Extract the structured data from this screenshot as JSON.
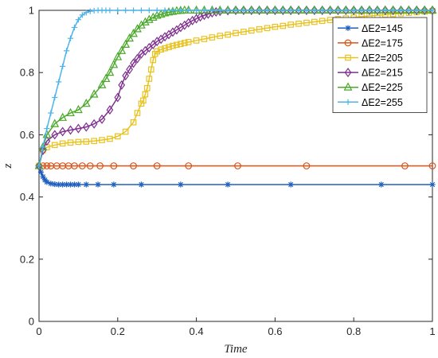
{
  "chart_data": {
    "type": "line",
    "title": "",
    "xlabel": "Time",
    "ylabel": "z",
    "xlim": [
      0,
      1
    ],
    "ylim": [
      0,
      1
    ],
    "xticks": [
      0,
      0.2,
      0.4,
      0.6,
      0.8,
      1
    ],
    "yticks": [
      0,
      0.2,
      0.4,
      0.6,
      0.8,
      1
    ],
    "xtick_labels": [
      "0",
      "0.2",
      "0.4",
      "0.6",
      "0.8",
      "1"
    ],
    "ytick_labels": [
      "0",
      "0.2",
      "0.4",
      "0.6",
      "0.8",
      "1"
    ],
    "grid": false,
    "legend_position": "top-right",
    "series": [
      {
        "name": "ΔE2=145",
        "color": "#1f5fbf",
        "marker": "asterisk",
        "x": [
          0,
          0.005,
          0.01,
          0.015,
          0.02,
          0.03,
          0.04,
          0.05,
          0.06,
          0.07,
          0.08,
          0.09,
          0.1,
          0.12,
          0.15,
          0.19,
          0.26,
          0.36,
          0.48,
          0.64,
          0.87,
          1.0
        ],
        "y": [
          0.5,
          0.48,
          0.465,
          0.455,
          0.448,
          0.443,
          0.441,
          0.44,
          0.44,
          0.44,
          0.44,
          0.44,
          0.44,
          0.44,
          0.44,
          0.44,
          0.44,
          0.44,
          0.44,
          0.44,
          0.44,
          0.44
        ]
      },
      {
        "name": "ΔE2=175",
        "color": "#d95319",
        "marker": "circle",
        "x": [
          0,
          0.01,
          0.02,
          0.03,
          0.045,
          0.06,
          0.075,
          0.09,
          0.11,
          0.13,
          0.155,
          0.19,
          0.24,
          0.3,
          0.38,
          0.505,
          0.68,
          0.93,
          1.0
        ],
        "y": [
          0.5,
          0.5,
          0.5,
          0.5,
          0.5,
          0.5,
          0.5,
          0.5,
          0.5,
          0.5,
          0.5,
          0.5,
          0.5,
          0.5,
          0.5,
          0.5,
          0.5,
          0.5,
          0.5
        ]
      },
      {
        "name": "ΔE2=205",
        "color": "#e8c21f",
        "marker": "square",
        "x": [
          0,
          0.01,
          0.02,
          0.04,
          0.06,
          0.08,
          0.1,
          0.12,
          0.14,
          0.16,
          0.18,
          0.2,
          0.22,
          0.24,
          0.25,
          0.26,
          0.265,
          0.27,
          0.275,
          0.28,
          0.285,
          0.29,
          0.295,
          0.3,
          0.31,
          0.32,
          0.33,
          0.34,
          0.35,
          0.36,
          0.37,
          0.38,
          0.4,
          0.42,
          0.44,
          0.46,
          0.48,
          0.5,
          0.52,
          0.54,
          0.56,
          0.58,
          0.6,
          0.62,
          0.64,
          0.66,
          0.68,
          0.7,
          0.72,
          0.74,
          0.76,
          0.78,
          0.8,
          0.82,
          0.84,
          0.86,
          0.88,
          0.9,
          0.92,
          0.94,
          0.96,
          0.98,
          1.0
        ],
        "y": [
          0.5,
          0.55,
          0.56,
          0.567,
          0.572,
          0.575,
          0.577,
          0.578,
          0.58,
          0.583,
          0.587,
          0.595,
          0.61,
          0.64,
          0.67,
          0.7,
          0.71,
          0.73,
          0.75,
          0.78,
          0.81,
          0.84,
          0.86,
          0.868,
          0.874,
          0.878,
          0.882,
          0.886,
          0.889,
          0.892,
          0.895,
          0.898,
          0.903,
          0.908,
          0.913,
          0.918,
          0.922,
          0.927,
          0.931,
          0.935,
          0.939,
          0.943,
          0.947,
          0.95,
          0.954,
          0.957,
          0.96,
          0.963,
          0.966,
          0.969,
          0.972,
          0.974,
          0.977,
          0.98,
          0.982,
          0.984,
          0.986,
          0.988,
          0.99,
          0.992,
          0.994,
          0.996,
          0.998
        ]
      },
      {
        "name": "ΔE2=215",
        "color": "#7e2f8e",
        "marker": "diamond",
        "x": [
          0,
          0.01,
          0.02,
          0.04,
          0.06,
          0.08,
          0.1,
          0.12,
          0.14,
          0.16,
          0.18,
          0.2,
          0.21,
          0.22,
          0.23,
          0.24,
          0.25,
          0.26,
          0.27,
          0.28,
          0.29,
          0.3,
          0.31,
          0.32,
          0.33,
          0.34,
          0.35,
          0.36,
          0.37,
          0.38,
          0.39,
          0.4,
          0.41,
          0.42,
          0.43,
          0.44,
          0.45,
          0.46,
          0.48,
          0.5,
          0.52,
          0.54,
          0.56,
          0.58,
          0.6,
          0.62,
          0.64,
          0.66,
          0.68,
          0.7,
          0.72,
          0.74,
          0.76,
          0.78,
          0.8,
          0.82,
          0.84,
          0.86,
          0.88,
          0.9,
          0.92,
          0.94,
          0.96,
          0.98,
          1.0
        ],
        "y": [
          0.5,
          0.55,
          0.58,
          0.6,
          0.61,
          0.615,
          0.62,
          0.625,
          0.635,
          0.65,
          0.68,
          0.72,
          0.76,
          0.79,
          0.81,
          0.83,
          0.845,
          0.86,
          0.87,
          0.88,
          0.89,
          0.9,
          0.907,
          0.915,
          0.922,
          0.93,
          0.937,
          0.945,
          0.952,
          0.96,
          0.967,
          0.973,
          0.979,
          0.984,
          0.988,
          0.992,
          0.995,
          0.997,
          0.999,
          1.0,
          1.0,
          1.0,
          1.0,
          1.0,
          1.0,
          1.0,
          1.0,
          1.0,
          1.0,
          1.0,
          1.0,
          1.0,
          1.0,
          1.0,
          1.0,
          1.0,
          1.0,
          1.0,
          1.0,
          1.0,
          1.0,
          1.0,
          1.0,
          1.0,
          1.0
        ]
      },
      {
        "name": "ΔE2=225",
        "color": "#4aa82a",
        "marker": "triangle",
        "x": [
          0,
          0.01,
          0.02,
          0.04,
          0.06,
          0.08,
          0.1,
          0.12,
          0.14,
          0.16,
          0.17,
          0.18,
          0.19,
          0.2,
          0.21,
          0.22,
          0.23,
          0.24,
          0.25,
          0.26,
          0.27,
          0.28,
          0.29,
          0.3,
          0.31,
          0.32,
          0.33,
          0.34,
          0.35,
          0.36,
          0.37,
          0.38,
          0.4,
          0.42,
          0.44,
          0.46,
          0.48,
          0.5,
          0.52,
          0.54,
          0.56,
          0.58,
          0.6,
          0.62,
          0.64,
          0.66,
          0.68,
          0.7,
          0.72,
          0.74,
          0.76,
          0.78,
          0.8,
          0.82,
          0.84,
          0.86,
          0.88,
          0.9,
          0.92,
          0.94,
          0.96,
          0.98,
          1.0
        ],
        "y": [
          0.5,
          0.56,
          0.6,
          0.635,
          0.655,
          0.67,
          0.68,
          0.7,
          0.73,
          0.76,
          0.78,
          0.8,
          0.825,
          0.85,
          0.87,
          0.89,
          0.91,
          0.925,
          0.94,
          0.952,
          0.962,
          0.97,
          0.977,
          0.983,
          0.987,
          0.991,
          0.994,
          0.996,
          0.998,
          0.999,
          1.0,
          1.0,
          1.0,
          1.0,
          1.0,
          1.0,
          1.0,
          1.0,
          1.0,
          1.0,
          1.0,
          1.0,
          1.0,
          1.0,
          1.0,
          1.0,
          1.0,
          1.0,
          1.0,
          1.0,
          1.0,
          1.0,
          1.0,
          1.0,
          1.0,
          1.0,
          1.0,
          1.0,
          1.0,
          1.0,
          1.0,
          1.0,
          1.0
        ]
      },
      {
        "name": "ΔE2=255",
        "color": "#4db3ea",
        "marker": "plus",
        "x": [
          0,
          0.01,
          0.02,
          0.03,
          0.04,
          0.05,
          0.06,
          0.07,
          0.08,
          0.09,
          0.1,
          0.11,
          0.12,
          0.13,
          0.14,
          0.15,
          0.16,
          0.17,
          0.18,
          0.2,
          0.22,
          0.24,
          0.26,
          0.28,
          0.3,
          0.32,
          0.34,
          0.36,
          0.38,
          0.4,
          0.42,
          0.44,
          0.46,
          0.48,
          0.5,
          0.52,
          0.54,
          0.56,
          0.58,
          0.6,
          0.62,
          0.64,
          0.66,
          0.68,
          0.7,
          0.72,
          0.74,
          0.76,
          0.78,
          0.8,
          0.82,
          0.84,
          0.86,
          0.88,
          0.9,
          0.92,
          0.94,
          0.96,
          0.98,
          1.0
        ],
        "y": [
          0.5,
          0.56,
          0.62,
          0.67,
          0.72,
          0.77,
          0.82,
          0.87,
          0.91,
          0.945,
          0.97,
          0.985,
          0.993,
          0.997,
          0.999,
          1.0,
          1.0,
          1.0,
          1.0,
          1.0,
          1.0,
          1.0,
          1.0,
          1.0,
          1.0,
          1.0,
          1.0,
          1.0,
          1.0,
          1.0,
          1.0,
          1.0,
          1.0,
          1.0,
          1.0,
          1.0,
          1.0,
          1.0,
          1.0,
          1.0,
          1.0,
          1.0,
          1.0,
          1.0,
          1.0,
          1.0,
          1.0,
          1.0,
          1.0,
          1.0,
          1.0,
          1.0,
          1.0,
          1.0,
          1.0,
          1.0,
          1.0,
          1.0,
          1.0,
          1.0
        ]
      }
    ]
  }
}
